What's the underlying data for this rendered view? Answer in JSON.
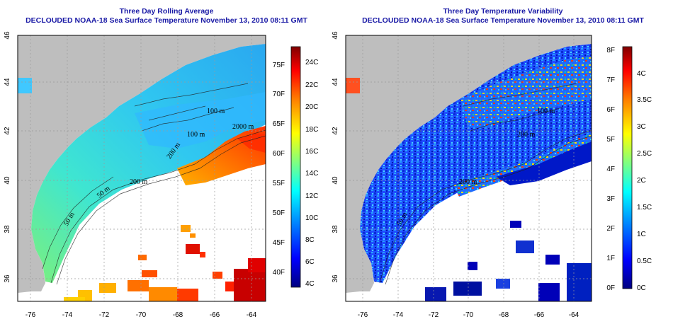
{
  "panels": [
    {
      "title": "Three Day Rolling Average",
      "subtitle": "DECLOUDED NOAA-18 Sea Surface Temperature November 13, 2010 08:11 GMT",
      "x_ticks": [
        "-76",
        "-74",
        "-72",
        "-70",
        "-68",
        "-66",
        "-64"
      ],
      "y_ticks": [
        "36",
        "38",
        "40",
        "42",
        "44",
        "46"
      ],
      "contour_labels": [
        "100 m",
        "2000 m",
        "100 m",
        "200 m",
        "200 m",
        "50 m",
        "50 m"
      ],
      "colorbar": {
        "left_labels": [
          "75F",
          "70F",
          "65F",
          "60F",
          "55F",
          "50F",
          "45F",
          "40F"
        ],
        "right_labels": [
          "24C",
          "22C",
          "20C",
          "18C",
          "16C",
          "14C",
          "12C",
          "10C",
          "8C",
          "6C",
          "4C"
        ]
      }
    },
    {
      "title": "Three Day Temperature Variability",
      "subtitle": "DECLOUDED NOAA-18 Sea Surface Temperature November 13, 2010 08:11 GMT",
      "x_ticks": [
        "-76",
        "-74",
        "-72",
        "-70",
        "-68",
        "-66",
        "-64"
      ],
      "y_ticks": [
        "36",
        "38",
        "40",
        "42",
        "44",
        "46"
      ],
      "contour_labels": [
        "100 m",
        "200 m",
        "200 m",
        "50 m"
      ],
      "colorbar": {
        "left_labels": [
          "8F",
          "7F",
          "6F",
          "5F",
          "4F",
          "3F",
          "2F",
          "1F",
          "0F"
        ],
        "right_labels": [
          "4C",
          "3.5C",
          "3C",
          "2.5C",
          "2C",
          "1.5C",
          "1C",
          "0.5C",
          "0C"
        ]
      }
    }
  ],
  "colors": {
    "land": "#bebebe",
    "nodata": "#ffffff",
    "title": "#1a1aa6",
    "grid": "#9a9a9a",
    "colormap": [
      "#000080",
      "#0000ff",
      "#0080ff",
      "#00ffff",
      "#80ff80",
      "#ffff00",
      "#ff8000",
      "#ff0000",
      "#800000"
    ]
  }
}
